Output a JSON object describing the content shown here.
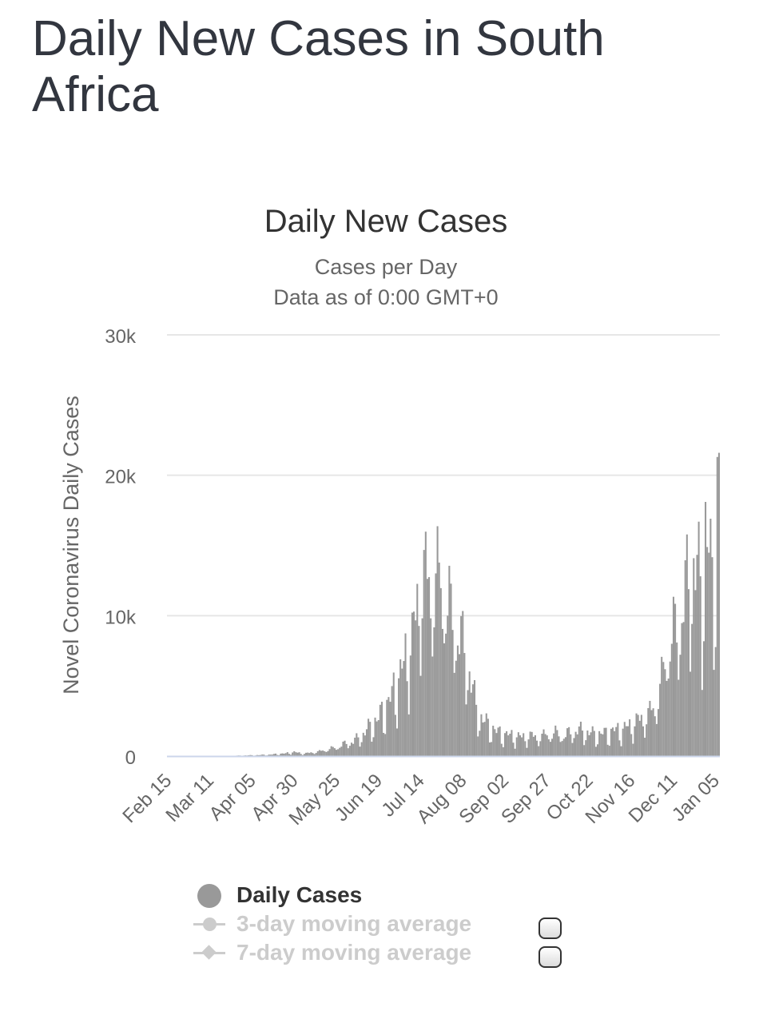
{
  "page": {
    "title": "Daily New Cases in South Africa"
  },
  "colors": {
    "bar": "#999999",
    "baseline": "#ccd6eb",
    "grid": "#e6e6e6",
    "title": "#333333",
    "subtitle": "#666666",
    "legend_active": "#333333",
    "legend_inactive": "#cccccc"
  },
  "chart_data": {
    "type": "bar",
    "title": "Daily New Cases",
    "subtitle_lines": [
      "Cases per Day",
      "Data as of 0:00 GMT+0"
    ],
    "xlabel": "",
    "ylabel": "Novel Coronavirus Daily Cases",
    "ylim": [
      0,
      30000
    ],
    "y_ticks": [
      0,
      10000,
      20000,
      30000
    ],
    "y_tick_labels": [
      "0",
      "10k",
      "20k",
      "30k"
    ],
    "x_tick_labels": [
      "Feb 15",
      "Mar 11",
      "Apr 05",
      "Apr 30",
      "May 25",
      "Jun 19",
      "Jul 14",
      "Aug 08",
      "Sep 02",
      "Sep 27",
      "Oct 22",
      "Nov 16",
      "Dec 11",
      "Jan 05"
    ],
    "x_tick_days": [
      0,
      25,
      50,
      75,
      100,
      125,
      150,
      175,
      200,
      225,
      250,
      275,
      300,
      325
    ],
    "start_date": "Feb 15",
    "grid": true,
    "anchors": [
      [
        0,
        0
      ],
      [
        20,
        0
      ],
      [
        22,
        1
      ],
      [
        30,
        3
      ],
      [
        35,
        10
      ],
      [
        40,
        25
      ],
      [
        45,
        50
      ],
      [
        50,
        60
      ],
      [
        55,
        80
      ],
      [
        60,
        100
      ],
      [
        65,
        150
      ],
      [
        70,
        200
      ],
      [
        75,
        300
      ],
      [
        80,
        180
      ],
      [
        85,
        250
      ],
      [
        90,
        350
      ],
      [
        95,
        500
      ],
      [
        100,
        650
      ],
      [
        105,
        900
      ],
      [
        110,
        1100
      ],
      [
        115,
        1500
      ],
      [
        120,
        2200
      ],
      [
        125,
        2800
      ],
      [
        130,
        3800
      ],
      [
        135,
        5000
      ],
      [
        140,
        6800
      ],
      [
        145,
        8800
      ],
      [
        148,
        11000
      ],
      [
        150,
        12800
      ],
      [
        153,
        13400
      ],
      [
        156,
        12500
      ],
      [
        159,
        12900
      ],
      [
        162,
        13200
      ],
      [
        165,
        11500
      ],
      [
        168,
        10500
      ],
      [
        171,
        9500
      ],
      [
        174,
        8500
      ],
      [
        177,
        7500
      ],
      [
        180,
        5500
      ],
      [
        183,
        3500
      ],
      [
        186,
        2800
      ],
      [
        190,
        2300
      ],
      [
        195,
        1800
      ],
      [
        200,
        1600
      ],
      [
        205,
        1500
      ],
      [
        210,
        1400
      ],
      [
        215,
        1500
      ],
      [
        220,
        1400
      ],
      [
        225,
        1600
      ],
      [
        230,
        1700
      ],
      [
        235,
        1500
      ],
      [
        240,
        1800
      ],
      [
        245,
        1900
      ],
      [
        250,
        1700
      ],
      [
        255,
        1600
      ],
      [
        260,
        1700
      ],
      [
        265,
        1900
      ],
      [
        270,
        2000
      ],
      [
        275,
        2300
      ],
      [
        280,
        2700
      ],
      [
        285,
        3000
      ],
      [
        290,
        4000
      ],
      [
        293,
        5500
      ],
      [
        296,
        8000
      ],
      [
        299,
        8700
      ],
      [
        302,
        9500
      ],
      [
        305,
        10500
      ],
      [
        308,
        12500
      ],
      [
        311,
        14000
      ],
      [
        314,
        13500
      ],
      [
        317,
        12000
      ],
      [
        319,
        16500
      ],
      [
        321,
        15000
      ],
      [
        323,
        12500
      ],
      [
        325,
        17000
      ],
      [
        327,
        21600
      ]
    ],
    "notable_values": {
      "day 327 (Jan 07)": 21600,
      "peak Jul": 13900,
      "trough Oct": 1000
    }
  },
  "legend": {
    "items": [
      {
        "label": "Daily Cases",
        "marker": "circle-filled",
        "active": true
      },
      {
        "label": "3-day moving average",
        "marker": "line-circle",
        "active": false
      },
      {
        "label": "7-day moving average",
        "marker": "line-diamond",
        "active": false
      }
    ]
  }
}
